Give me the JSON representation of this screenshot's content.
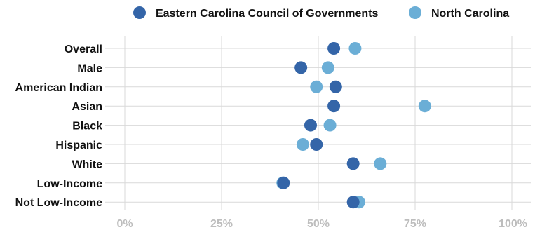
{
  "chart_data": {
    "type": "scatter",
    "title": "",
    "xlabel": "",
    "ylabel": "",
    "xlim": [
      0,
      100
    ],
    "x_ticks": [
      0,
      25,
      50,
      75,
      100
    ],
    "x_tick_format": "%",
    "grid": true,
    "legend_position": "top",
    "categories": [
      "Overall",
      "Male",
      "American Indian",
      "Asian",
      "Black",
      "Hispanic",
      "White",
      "Low-Income",
      "Not Low-Income"
    ],
    "series": [
      {
        "name": "Eastern Carolina Council of Governments",
        "color": "#3465a8",
        "values": [
          54,
          45.5,
          54.5,
          54,
          48,
          49.5,
          59,
          41,
          59
        ]
      },
      {
        "name": "North Carolina",
        "color": "#6baed6",
        "values": [
          59.5,
          52.5,
          49.5,
          77.5,
          53,
          46,
          66,
          40.8,
          60.5
        ]
      }
    ]
  }
}
